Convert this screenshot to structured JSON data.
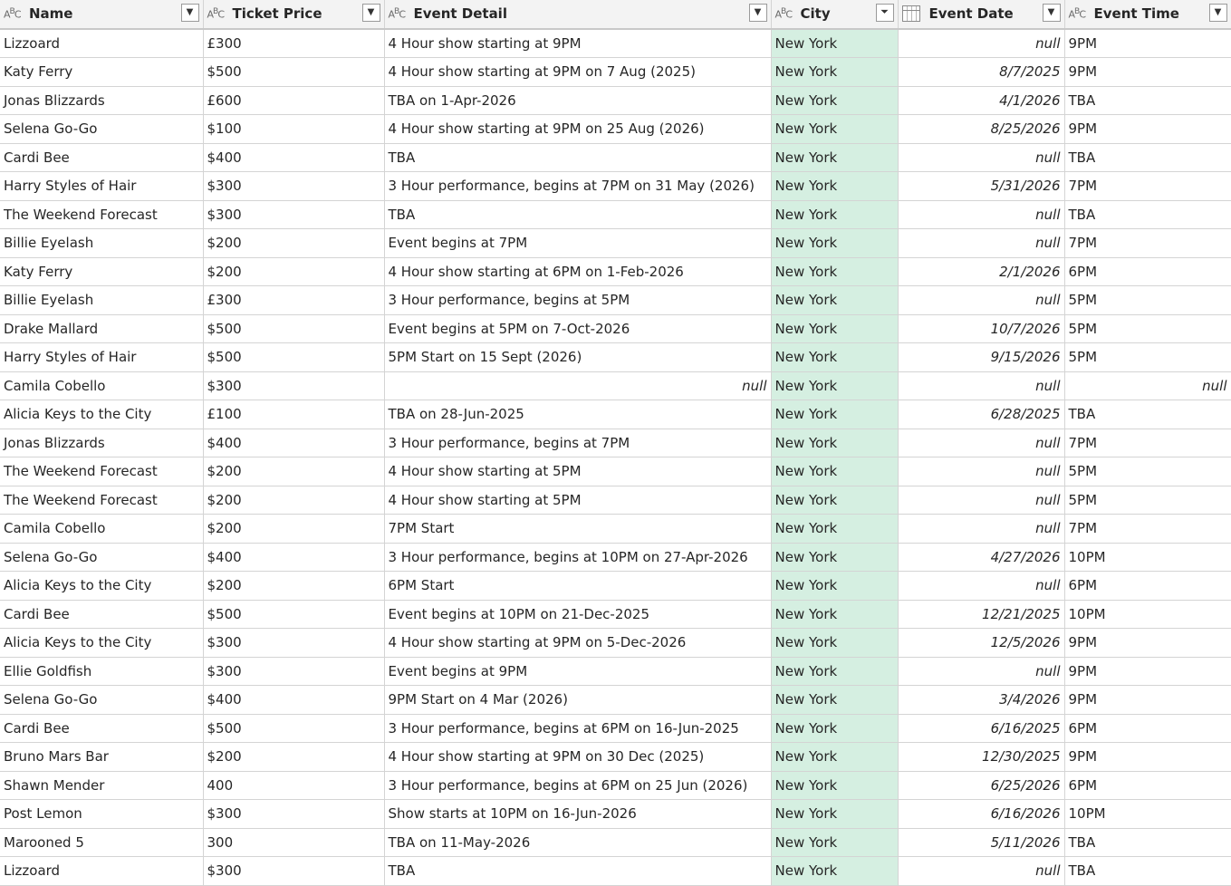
{
  "columns": [
    {
      "type_icon": "A B C",
      "label": "Name"
    },
    {
      "type_icon": "A B C",
      "label": "Ticket Price"
    },
    {
      "type_icon": "A B C",
      "label": "Event Detail"
    },
    {
      "type_icon": "A B C",
      "label": "City"
    },
    {
      "type_icon": "calendar-icon",
      "label": "Event Date"
    },
    {
      "type_icon": "A B C",
      "label": "Event Time"
    }
  ],
  "filter_icon": "▾",
  "rows": [
    {
      "name": "Lizzoard",
      "price": "£300",
      "detail": "4 Hour show starting at 9PM",
      "city": "New York",
      "date": "null",
      "time": "9PM"
    },
    {
      "name": "Katy Ferry",
      "price": "$500",
      "detail": "4 Hour show starting at 9PM on 7 Aug (2025)",
      "city": "New York",
      "date": "8/7/2025",
      "time": "9PM"
    },
    {
      "name": "Jonas Blizzards",
      "price": "£600",
      "detail": "TBA on 1-Apr-2026",
      "city": "New York",
      "date": "4/1/2026",
      "time": "TBA"
    },
    {
      "name": "Selena Go-Go",
      "price": "$100",
      "detail": "4 Hour show starting at 9PM on 25 Aug (2026)",
      "city": "New York",
      "date": "8/25/2026",
      "time": "9PM"
    },
    {
      "name": "Cardi Bee",
      "price": "$400",
      "detail": "TBA",
      "city": "New York",
      "date": "null",
      "time": "TBA"
    },
    {
      "name": "Harry Styles of Hair",
      "price": "$300",
      "detail": "3 Hour performance, begins at 7PM on 31 May (2026)",
      "city": "New York",
      "date": "5/31/2026",
      "time": "7PM"
    },
    {
      "name": "The Weekend Forecast",
      "price": "$300",
      "detail": "TBA",
      "city": "New York",
      "date": "null",
      "time": "TBA"
    },
    {
      "name": "Billie Eyelash",
      "price": "$200",
      "detail": "Event begins at 7PM",
      "city": "New York",
      "date": "null",
      "time": "7PM"
    },
    {
      "name": "Katy Ferry",
      "price": "$200",
      "detail": "4 Hour show starting at 6PM on 1-Feb-2026",
      "city": "New York",
      "date": "2/1/2026",
      "time": "6PM"
    },
    {
      "name": "Billie Eyelash",
      "price": "£300",
      "detail": "3 Hour performance, begins at 5PM",
      "city": "New York",
      "date": "null",
      "time": "5PM"
    },
    {
      "name": "Drake Mallard",
      "price": "$500",
      "detail": "Event begins at 5PM on 7-Oct-2026",
      "city": "New York",
      "date": "10/7/2026",
      "time": "5PM"
    },
    {
      "name": "Harry Styles of Hair",
      "price": "$500",
      "detail": "5PM Start on 15 Sept (2026)",
      "city": "New York",
      "date": "9/15/2026",
      "time": "5PM"
    },
    {
      "name": "Camila Cobello",
      "price": "$300",
      "detail": "null",
      "city": "New York",
      "date": "null",
      "time": "null"
    },
    {
      "name": "Alicia Keys to the City",
      "price": "£100",
      "detail": "TBA on 28-Jun-2025",
      "city": "New York",
      "date": "6/28/2025",
      "time": "TBA"
    },
    {
      "name": "Jonas Blizzards",
      "price": "$400",
      "detail": "3 Hour performance, begins at 7PM",
      "city": "New York",
      "date": "null",
      "time": "7PM"
    },
    {
      "name": "The Weekend Forecast",
      "price": "$200",
      "detail": "4 Hour show starting at 5PM",
      "city": "New York",
      "date": "null",
      "time": "5PM"
    },
    {
      "name": "The Weekend Forecast",
      "price": "$200",
      "detail": "4 Hour show starting at 5PM",
      "city": "New York",
      "date": "null",
      "time": "5PM"
    },
    {
      "name": "Camila Cobello",
      "price": "$200",
      "detail": "7PM Start",
      "city": "New York",
      "date": "null",
      "time": "7PM"
    },
    {
      "name": "Selena Go-Go",
      "price": "$400",
      "detail": "3 Hour performance, begins at 10PM on 27-Apr-2026",
      "city": "New York",
      "date": "4/27/2026",
      "time": "10PM"
    },
    {
      "name": "Alicia Keys to the City",
      "price": "$200",
      "detail": "6PM Start",
      "city": "New York",
      "date": "null",
      "time": "6PM"
    },
    {
      "name": "Cardi Bee",
      "price": "$500",
      "detail": "Event begins at 10PM on 21-Dec-2025",
      "city": "New York",
      "date": "12/21/2025",
      "time": "10PM"
    },
    {
      "name": "Alicia Keys to the City",
      "price": "$300",
      "detail": "4 Hour show starting at 9PM on 5-Dec-2026",
      "city": "New York",
      "date": "12/5/2026",
      "time": "9PM"
    },
    {
      "name": "Ellie Goldfish",
      "price": "$300",
      "detail": "Event begins at 9PM",
      "city": "New York",
      "date": "null",
      "time": "9PM"
    },
    {
      "name": "Selena Go-Go",
      "price": "$400",
      "detail": "9PM Start on 4 Mar (2026)",
      "city": "New York",
      "date": "3/4/2026",
      "time": "9PM"
    },
    {
      "name": "Cardi Bee",
      "price": "$500",
      "detail": "3 Hour performance, begins at 6PM on 16-Jun-2025",
      "city": "New York",
      "date": "6/16/2025",
      "time": "6PM"
    },
    {
      "name": "Bruno Mars Bar",
      "price": "$200",
      "detail": "4 Hour show starting at 9PM on 30 Dec (2025)",
      "city": "New York",
      "date": "12/30/2025",
      "time": "9PM"
    },
    {
      "name": "Shawn Mender",
      "price": "400",
      "detail": "3 Hour performance, begins at 6PM on 25 Jun (2026)",
      "city": "New York",
      "date": "6/25/2026",
      "time": "6PM"
    },
    {
      "name": "Post Lemon",
      "price": "$300",
      "detail": "Show starts at 10PM on 16-Jun-2026",
      "city": "New York",
      "date": "6/16/2026",
      "time": "10PM"
    },
    {
      "name": "Marooned 5",
      "price": "300",
      "detail": "TBA on 11-May-2026",
      "city": "New York",
      "date": "5/11/2026",
      "time": "TBA"
    },
    {
      "name": "Lizzoard",
      "price": "$300",
      "detail": "TBA",
      "city": "New York",
      "date": "null",
      "time": "TBA"
    }
  ]
}
